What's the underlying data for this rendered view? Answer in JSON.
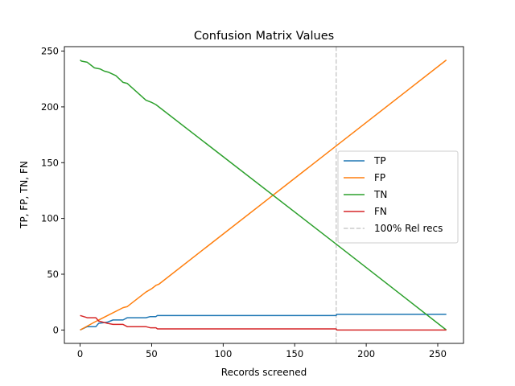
{
  "chart_data": {
    "type": "line",
    "title": "Confusion Matrix Values",
    "xlabel": "Records screened",
    "ylabel": "TP, FP, TN, FN",
    "xlim": [
      -11,
      268
    ],
    "ylim": [
      -12,
      254
    ],
    "xticks": [
      0,
      50,
      100,
      150,
      200,
      250
    ],
    "yticks": [
      0,
      50,
      100,
      150,
      200,
      250
    ],
    "grid": false,
    "legend_position": "center-right",
    "series": [
      {
        "name": "TP",
        "color": "#1f77b4",
        "x": [
          0,
          5,
          11,
          13,
          19,
          23,
          30,
          33,
          46,
          49,
          53,
          54,
          179,
          179.5,
          256
        ],
        "y": [
          0,
          3,
          3,
          6,
          7,
          9,
          9,
          11,
          11,
          12,
          12,
          13,
          13,
          14,
          14
        ]
      },
      {
        "name": "FP",
        "color": "#ff7f0e",
        "x": [
          0,
          10,
          30,
          33,
          46,
          50,
          53,
          55,
          179,
          256
        ],
        "y": [
          0,
          7,
          20,
          21,
          34,
          37,
          40,
          41,
          165,
          242
        ]
      },
      {
        "name": "TN",
        "color": "#2ca02c",
        "x": [
          0,
          1,
          5,
          10,
          14,
          17,
          20,
          25,
          30,
          33,
          46,
          50,
          53,
          179,
          256
        ],
        "y": [
          242,
          241,
          240,
          235,
          234,
          232,
          231,
          228,
          222,
          221,
          206,
          204,
          202,
          77,
          0
        ]
      },
      {
        "name": "FN",
        "color": "#d62728",
        "x": [
          0,
          5,
          11,
          13,
          19,
          23,
          30,
          33,
          46,
          49,
          53,
          54,
          179,
          179.5,
          256
        ],
        "y": [
          13,
          11,
          11,
          8,
          6,
          5,
          5,
          3,
          3,
          2,
          2,
          1,
          1,
          0,
          0
        ]
      }
    ],
    "vline": {
      "name": "100% Rel recs",
      "x": 179,
      "color": "#cccccc"
    }
  }
}
